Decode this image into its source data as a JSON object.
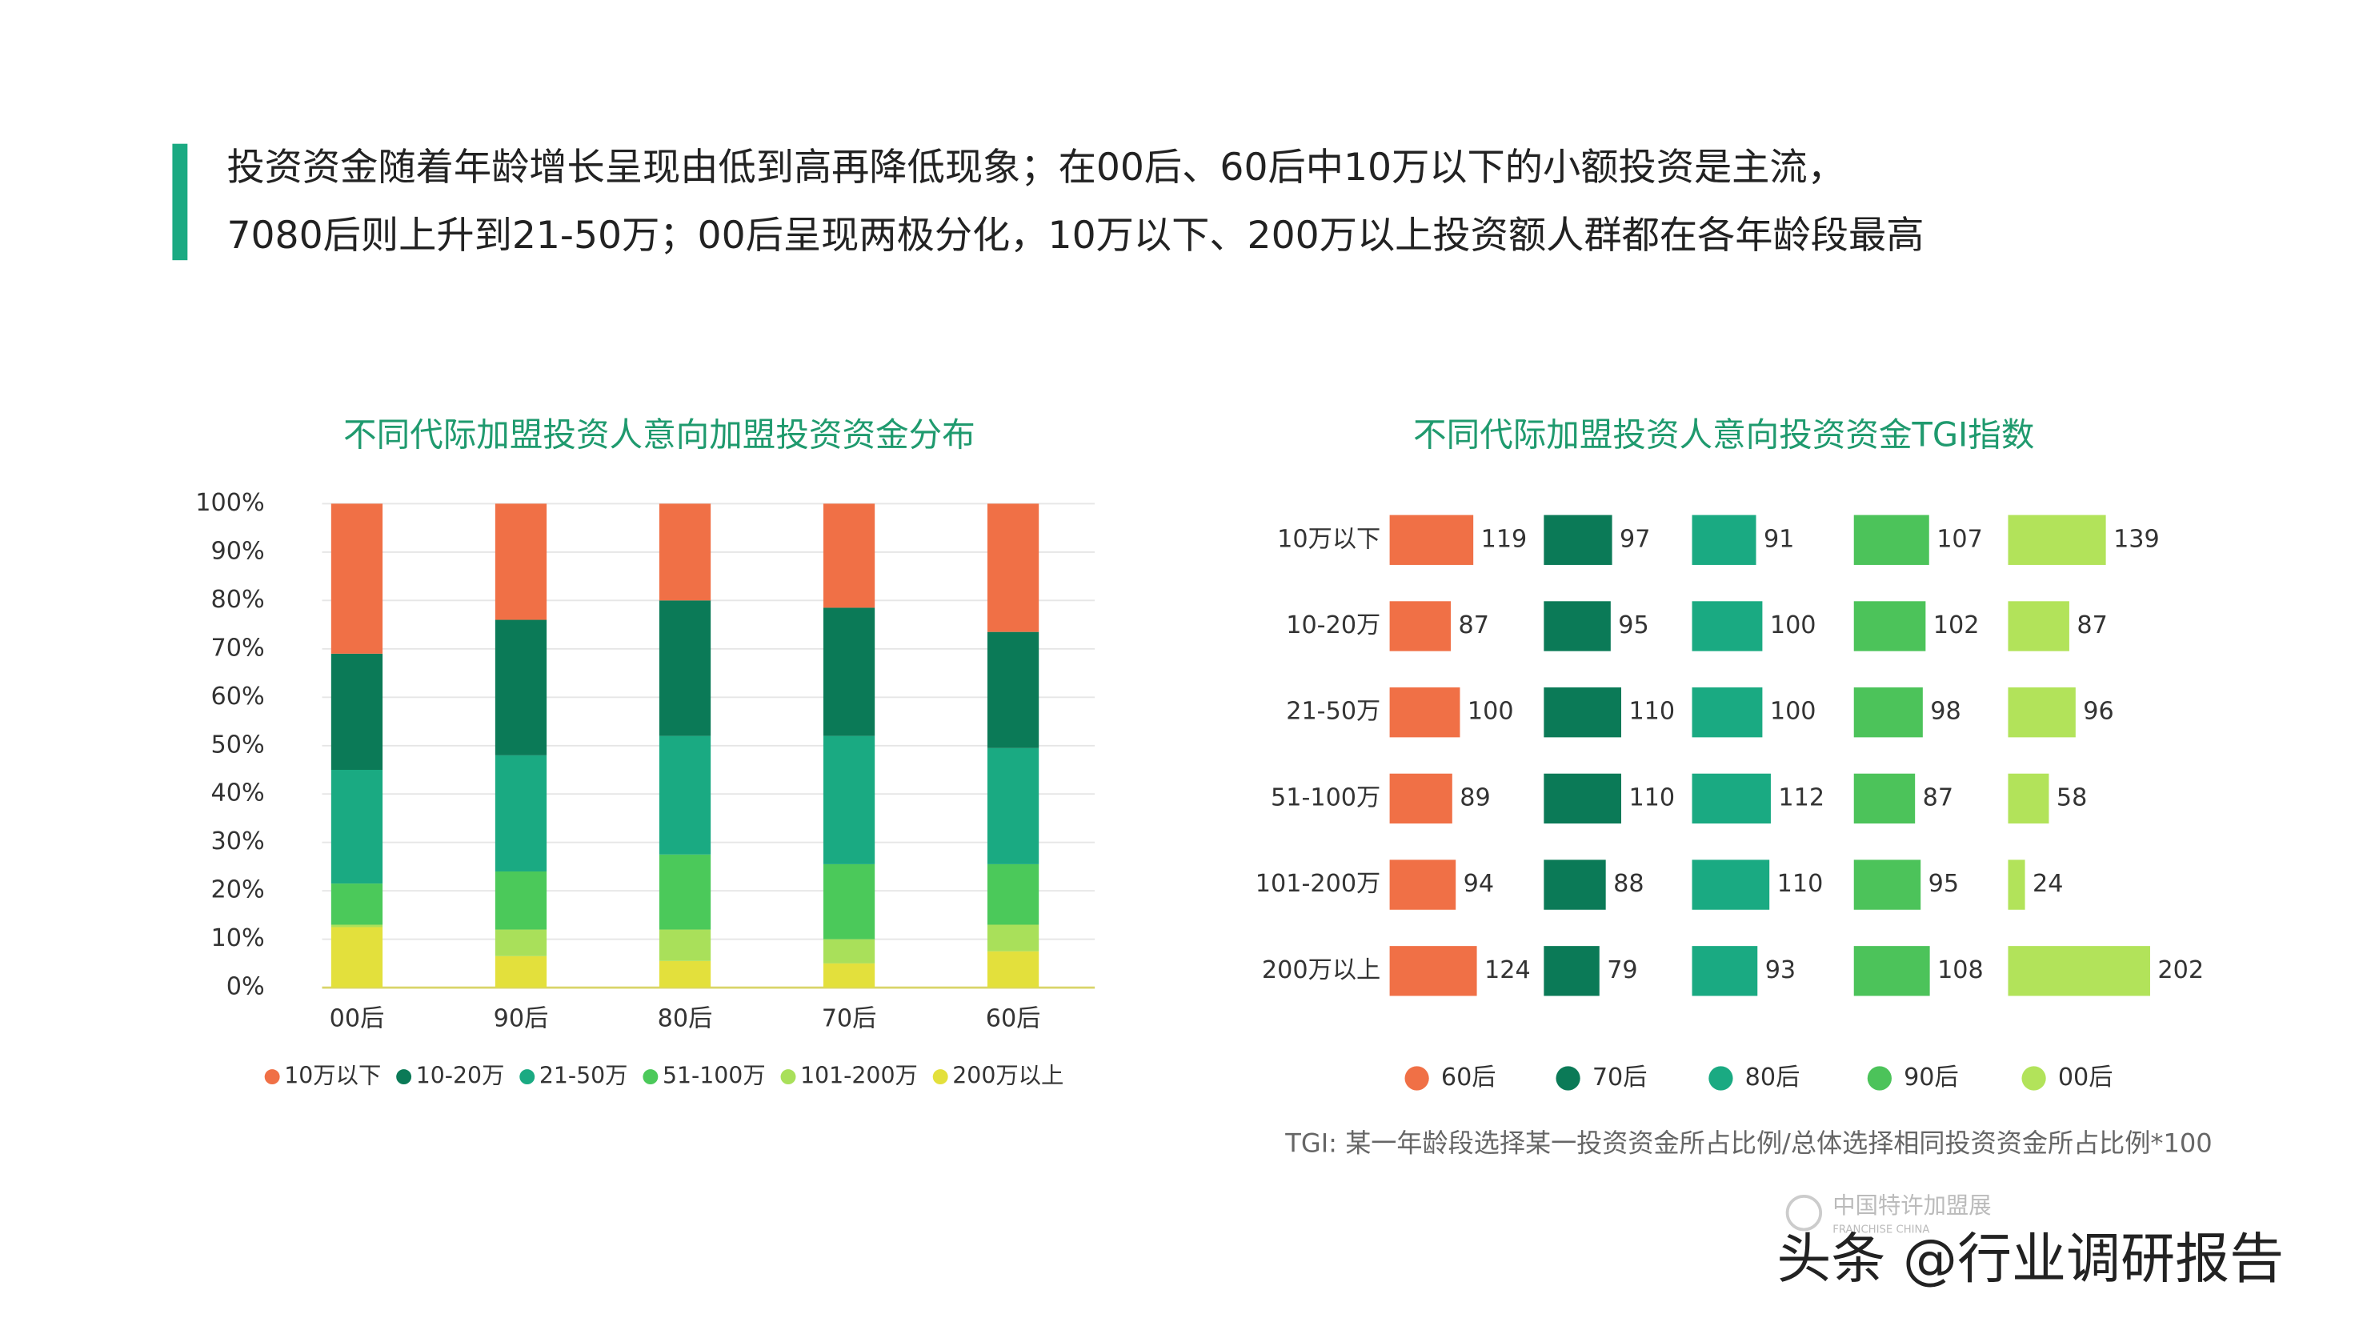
{
  "header": {
    "lines": [
      "投资资金随着年龄增长呈现由低到高再降低现象；在00后、60后中10万以下的小额投资是主流，",
      "7080后则上升到21-50万；00后呈现两极分化，10万以下、200万以上投资额人群都在各年龄段最高"
    ]
  },
  "chart_data": [
    {
      "type": "bar",
      "stacked": true,
      "title": "不同代际加盟投资人意向加盟投资资金分布",
      "categories": [
        "00后",
        "90后",
        "80后",
        "70后",
        "60后"
      ],
      "series": [
        {
          "name": "10万以下",
          "color": "#f07046",
          "values": [
            31,
            24,
            20,
            21.5,
            26.5
          ]
        },
        {
          "name": "10-20万",
          "color": "#0b7a57",
          "values": [
            24,
            28,
            28,
            26.5,
            24
          ]
        },
        {
          "name": "21-50万",
          "color": "#1aaa82",
          "values": [
            23.5,
            24,
            24.5,
            26.5,
            24
          ]
        },
        {
          "name": "51-100万",
          "color": "#4bc95a",
          "values": [
            8.5,
            12,
            15.5,
            15.5,
            12.5
          ]
        },
        {
          "name": "101-200万",
          "color": "#a9e05a",
          "values": [
            0.5,
            5.5,
            6.5,
            5,
            5.5
          ]
        },
        {
          "name": "200万以上",
          "color": "#e3e03c",
          "values": [
            12.5,
            6.5,
            5.5,
            5,
            7.5
          ]
        }
      ],
      "ylim": [
        0,
        100
      ],
      "yticks": [
        {
          "value": 0,
          "label": "0%"
        },
        {
          "value": 10,
          "label": "10%"
        },
        {
          "value": 20,
          "label": "20%"
        },
        {
          "value": 30,
          "label": "30%"
        },
        {
          "value": 40,
          "label": "40%"
        },
        {
          "value": 50,
          "label": "50%"
        },
        {
          "value": 60,
          "label": "60%"
        },
        {
          "value": 70,
          "label": "70%"
        },
        {
          "value": 80,
          "label": "80%"
        },
        {
          "value": 90,
          "label": "90%"
        },
        {
          "value": 100,
          "label": "100%"
        }
      ],
      "grid": true
    },
    {
      "type": "bar",
      "orientation": "horizontal",
      "title": "不同代际加盟投资人意向投资资金TGI指数",
      "categories": [
        "10万以下",
        "10-20万",
        "21-50万",
        "51-100万",
        "101-200万",
        "200万以上"
      ],
      "series": [
        {
          "name": "60后",
          "color": "#f07046",
          "values": [
            119,
            87,
            100,
            89,
            94,
            124
          ]
        },
        {
          "name": "70后",
          "color": "#0b7a57",
          "values": [
            97,
            95,
            110,
            110,
            88,
            79
          ]
        },
        {
          "name": "80后",
          "color": "#1aaa82",
          "values": [
            91,
            100,
            100,
            112,
            110,
            93
          ]
        },
        {
          "name": "90后",
          "color": "#4cc35a",
          "values": [
            107,
            102,
            98,
            87,
            95,
            108
          ]
        },
        {
          "name": "00后",
          "color": "#b2e35a",
          "values": [
            139,
            87,
            96,
            58,
            24,
            202
          ]
        }
      ],
      "note": "TGI: 某一年龄段选择某一投资资金所占比例/总体选择相同投资资金所占比例*100"
    }
  ],
  "watermark": {
    "brand": "中国特许加盟展",
    "brand_en": "FRANCHISE CHINA",
    "source": "头条 @行业调研报告"
  }
}
